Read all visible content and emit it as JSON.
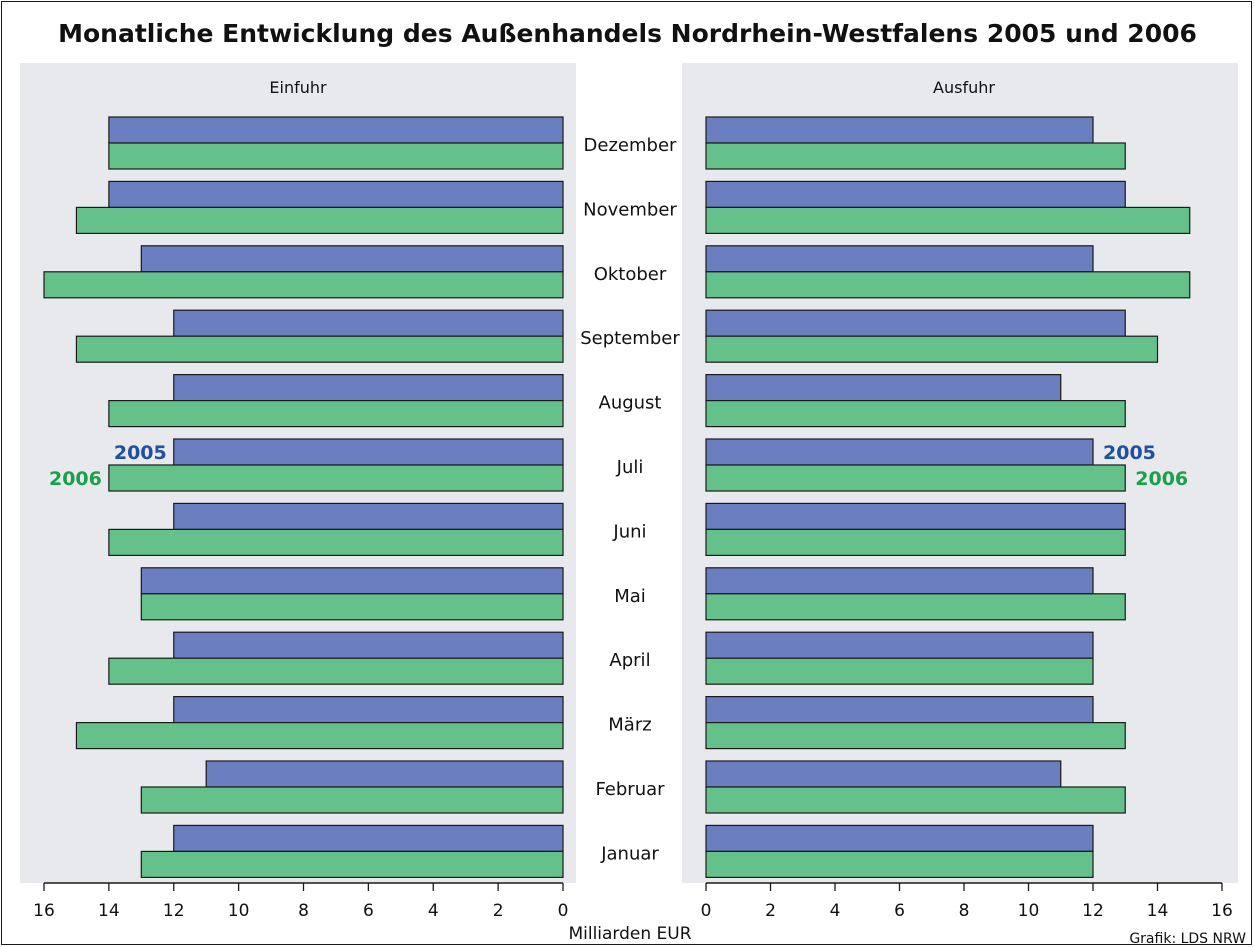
{
  "chart_data": {
    "type": "bar",
    "title": "Monatliche Entwicklung des Außenhandels Nordrhein-Westfalens 2005 und 2006",
    "unit_label": "Milliarden EUR",
    "credit": "Grafik: LDS NRW",
    "colors": {
      "2005": "#6b7ec0",
      "2006": "#64c18a",
      "panel_bg": "#e8e9ec",
      "label_2005": "#1e4fa0",
      "label_2006": "#1aa04a"
    },
    "categories": [
      "Dezember",
      "November",
      "Oktober",
      "September",
      "August",
      "Juli",
      "Juni",
      "Mai",
      "April",
      "März",
      "Februar",
      "Januar"
    ],
    "panels": [
      {
        "name": "Einfuhr",
        "xlim": [
          16,
          0
        ],
        "ticks": [
          16,
          14,
          12,
          10,
          8,
          6,
          4,
          2,
          0
        ],
        "series": [
          {
            "name": "2005",
            "values": [
              14,
              14,
              13,
              12,
              12,
              12,
              12,
              13,
              12,
              12,
              11,
              12
            ]
          },
          {
            "name": "2006",
            "values": [
              14,
              15,
              16,
              15,
              14,
              14,
              14,
              13,
              14,
              15,
              13,
              13
            ]
          }
        ]
      },
      {
        "name": "Ausfuhr",
        "xlim": [
          0,
          16
        ],
        "ticks": [
          0,
          2,
          4,
          6,
          8,
          10,
          12,
          14,
          16
        ],
        "series": [
          {
            "name": "2005",
            "values": [
              12,
              13,
              12,
              13,
              11,
              12,
              13,
              12,
              12,
              12,
              11,
              12
            ]
          },
          {
            "name": "2006",
            "values": [
              13,
              15,
              15,
              14,
              13,
              13,
              13,
              13,
              12,
              13,
              13,
              12
            ]
          }
        ]
      }
    ],
    "legend_row": "Juli"
  }
}
